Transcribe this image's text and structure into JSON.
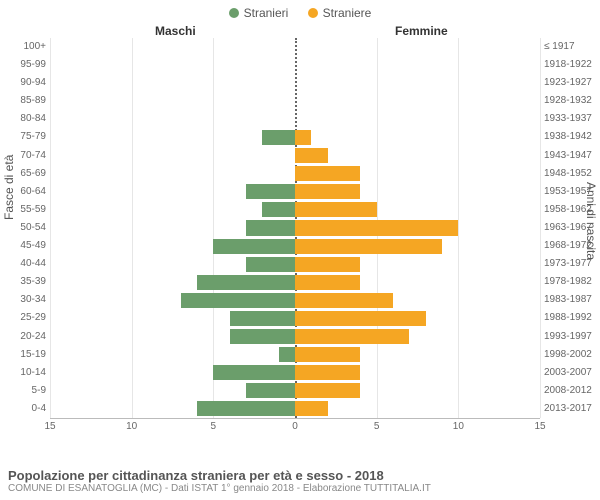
{
  "legend": {
    "items": [
      {
        "label": "Stranieri",
        "color": "#6b9e6b"
      },
      {
        "label": "Straniere",
        "color": "#f5a623"
      }
    ]
  },
  "headers": {
    "male": "Maschi",
    "female": "Femmine"
  },
  "axis_labels": {
    "left": "Fasce di età",
    "right": "Anni di nascita"
  },
  "chart": {
    "type": "population-pyramid",
    "male_color": "#6b9e6b",
    "female_color": "#f5a623",
    "grid_color": "#e6e6e6",
    "background_color": "#ffffff",
    "xmax": 15,
    "xticks": [
      15,
      10,
      5,
      0,
      5,
      10,
      15
    ],
    "categories_left": [
      "100+",
      "95-99",
      "90-94",
      "85-89",
      "80-84",
      "75-79",
      "70-74",
      "65-69",
      "60-64",
      "55-59",
      "50-54",
      "45-49",
      "40-44",
      "35-39",
      "30-34",
      "25-29",
      "20-24",
      "15-19",
      "10-14",
      "5-9",
      "0-4"
    ],
    "categories_right": [
      "≤ 1917",
      "1918-1922",
      "1923-1927",
      "1928-1932",
      "1933-1937",
      "1938-1942",
      "1943-1947",
      "1948-1952",
      "1953-1957",
      "1958-1962",
      "1963-1967",
      "1968-1972",
      "1973-1977",
      "1978-1982",
      "1983-1987",
      "1988-1992",
      "1993-1997",
      "1998-2002",
      "2003-2007",
      "2008-2012",
      "2013-2017"
    ],
    "male": [
      0,
      0,
      0,
      0,
      0,
      2,
      0,
      0,
      3,
      2,
      3,
      5,
      3,
      6,
      7,
      4,
      4,
      1,
      5,
      3,
      6
    ],
    "female": [
      0,
      0,
      0,
      0,
      0,
      1,
      2,
      4,
      4,
      5,
      10,
      9,
      4,
      4,
      6,
      8,
      7,
      4,
      4,
      4,
      2
    ]
  },
  "footer": {
    "title": "Popolazione per cittadinanza straniera per età e sesso - 2018",
    "subtitle": "COMUNE DI ESANATOGLIA (MC) - Dati ISTAT 1° gennaio 2018 - Elaborazione TUTTITALIA.IT"
  }
}
